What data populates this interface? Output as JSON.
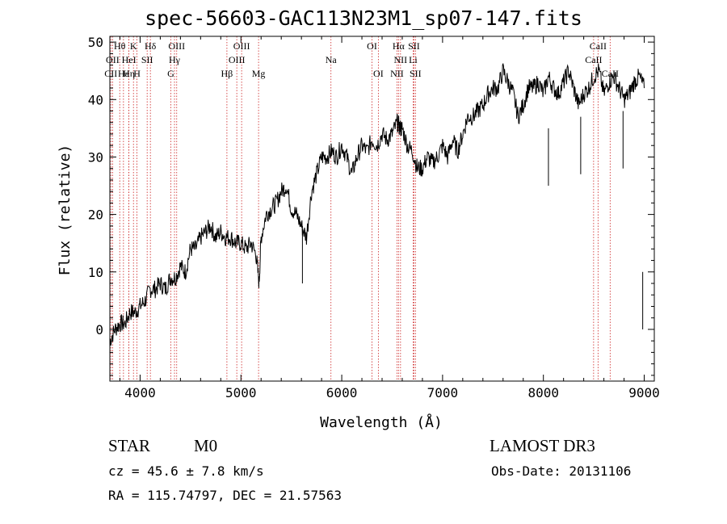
{
  "header": {
    "title": "spec-56603-GAC113N23M1_sp07-147.fits"
  },
  "info": {
    "object_class": "STAR",
    "subclass": "M0",
    "survey": "LAMOST DR3",
    "cz": "cz = 45.6 ± 7.8 km/s",
    "obs_date": "Obs-Date: 20131106",
    "radec": "RA = 115.74797, DEC =  21.57563"
  },
  "colors": {
    "spectrum": "#000000",
    "line_markers": "#cc2222",
    "axes": "#000000"
  },
  "chart_data": {
    "type": "line",
    "title": "spec-56603-GAC113N23M1_sp07-147.fits",
    "xlabel": "Wavelength (Å)",
    "ylabel": "Flux (relative)",
    "xlim": [
      3700,
      9100
    ],
    "ylim": [
      -9,
      51
    ],
    "xticks": [
      4000,
      5000,
      6000,
      7000,
      8000,
      9000
    ],
    "yticks": [
      0,
      10,
      20,
      30,
      40,
      50
    ],
    "grid": false,
    "series": [
      {
        "x": [
          3700,
          3750,
          3800,
          3850,
          3900,
          3950,
          4000,
          4050,
          4100,
          4150,
          4200,
          4250,
          4300,
          4350,
          4400,
          4450,
          4500,
          4550,
          4600,
          4650,
          4700,
          4750,
          4800,
          4850,
          4900,
          4950,
          5000,
          5050,
          5100,
          5150,
          5180,
          5200,
          5250,
          5300,
          5350,
          5400,
          5450,
          5500,
          5550,
          5600,
          5650,
          5700,
          5750,
          5800,
          5850,
          5900,
          5950,
          6000,
          6050,
          6100,
          6150,
          6200,
          6250,
          6300,
          6350,
          6400,
          6450,
          6500,
          6550,
          6580,
          6600,
          6650,
          6700,
          6750,
          6800,
          6850,
          6900,
          6950,
          7000,
          7050,
          7100,
          7150,
          7200,
          7250,
          7300,
          7350,
          7400,
          7450,
          7500,
          7550,
          7600,
          7650,
          7700,
          7750,
          7800,
          7850,
          7900,
          7950,
          8000,
          8050,
          8100,
          8150,
          8200,
          8250,
          8300,
          8350,
          8400,
          8450,
          8500,
          8550,
          8600,
          8650,
          8700,
          8750,
          8800,
          8850,
          8900,
          8950,
          9000
        ],
        "y": [
          -2,
          0,
          1,
          1,
          3,
          3,
          4,
          5,
          7,
          7,
          8,
          7,
          9,
          9,
          11,
          10,
          14,
          14,
          16,
          17,
          18,
          16,
          17,
          16,
          16,
          15,
          15,
          14,
          15,
          13,
          8,
          16,
          20,
          21,
          22,
          24,
          25,
          21,
          20,
          18,
          16,
          24,
          27,
          30,
          30,
          31,
          30,
          32,
          30,
          27,
          30,
          32,
          31,
          33,
          32,
          34,
          33,
          34,
          36,
          35,
          35,
          32,
          31,
          28,
          28,
          30,
          29,
          30,
          32,
          30,
          33,
          31,
          34,
          37,
          37,
          38,
          39,
          41,
          42,
          42,
          45,
          43,
          41,
          37,
          39,
          42,
          42,
          43,
          41,
          44,
          42,
          41,
          43,
          45,
          42,
          39,
          41,
          42,
          44,
          45,
          41,
          43,
          44,
          42,
          40,
          41,
          43,
          44,
          42
        ]
      }
    ],
    "line_markers": [
      {
        "label": "Hθ",
        "x": 3798,
        "row": 1
      },
      {
        "label": "OII",
        "x": 3727,
        "row": 2
      },
      {
        "label": "CII",
        "x": 3710,
        "row": 3
      },
      {
        "label": "Hε",
        "x": 3835,
        "row": 3
      },
      {
        "label": "K",
        "x": 3934,
        "row": 1
      },
      {
        "label": "HeI",
        "x": 3889,
        "row": 2
      },
      {
        "label": "SII",
        "x": 4070,
        "row": 2
      },
      {
        "label": "Hη",
        "x": 3889,
        "row": 3
      },
      {
        "label": "H",
        "x": 3969,
        "row": 3
      },
      {
        "label": "Hδ",
        "x": 4102,
        "row": 1
      },
      {
        "label": "OIII",
        "x": 4363,
        "row": 1
      },
      {
        "label": "Hγ",
        "x": 4341,
        "row": 2
      },
      {
        "label": "G",
        "x": 4305,
        "row": 3
      },
      {
        "label": "OIII",
        "x": 5007,
        "row": 1
      },
      {
        "label": "OIII",
        "x": 4959,
        "row": 2
      },
      {
        "label": "Hβ",
        "x": 4861,
        "row": 3
      },
      {
        "label": "Mg",
        "x": 5175,
        "row": 3
      },
      {
        "label": "Na",
        "x": 5893,
        "row": 2
      },
      {
        "label": "OI",
        "x": 6300,
        "row": 1
      },
      {
        "label": "OI",
        "x": 6363,
        "row": 3
      },
      {
        "label": "Hα",
        "x": 6563,
        "row": 1
      },
      {
        "label": "SII",
        "x": 6716,
        "row": 1
      },
      {
        "label": "NII",
        "x": 6583,
        "row": 2
      },
      {
        "label": "Li",
        "x": 6708,
        "row": 2
      },
      {
        "label": "NII",
        "x": 6548,
        "row": 3
      },
      {
        "label": "SII",
        "x": 6731,
        "row": 3
      },
      {
        "label": "CaII",
        "x": 8542,
        "row": 1
      },
      {
        "label": "CaII",
        "x": 8498,
        "row": 2
      },
      {
        "label": "CaII",
        "x": 8662,
        "row": 3
      }
    ]
  }
}
